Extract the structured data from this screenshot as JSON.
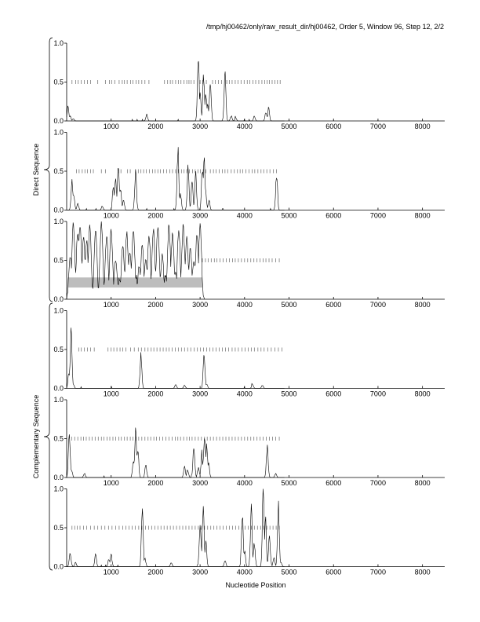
{
  "header": {
    "text": "/tmp/hj00462/only/raw_result_dir/hj00462, Order 5, Window 96, Step 12, 2/2"
  },
  "chart_data": {
    "type": "line",
    "xlabel": "Nucleotide Position",
    "group_labels": [
      "Direct Sequence",
      "Complementary Sequence"
    ],
    "xlim": [
      0,
      8500
    ],
    "ylim": [
      0,
      1
    ],
    "x_ticks": [
      1000,
      2000,
      3000,
      4000,
      5000,
      6000,
      7000,
      8000
    ],
    "y_ticks": [
      "0.0",
      "0.5",
      "1.0"
    ],
    "panels": [
      {
        "group": "Direct Sequence",
        "frame": 1,
        "peaks": [
          [
            30,
            0.18
          ],
          [
            80,
            0.06
          ],
          [
            150,
            0.03
          ],
          [
            1800,
            0.08
          ],
          [
            2960,
            0.83
          ],
          [
            3000,
            0.35
          ],
          [
            3080,
            0.58
          ],
          [
            3130,
            0.35
          ],
          [
            3170,
            0.22
          ],
          [
            3230,
            0.48
          ],
          [
            3560,
            0.65
          ],
          [
            3700,
            0.06
          ],
          [
            3800,
            0.04
          ],
          [
            4220,
            0.06
          ],
          [
            4480,
            0.12
          ],
          [
            4540,
            0.16
          ]
        ],
        "stop_codons": [
          120,
          200,
          260,
          330,
          400,
          470,
          540,
          700,
          870,
          960,
          1010,
          1080,
          1180,
          1250,
          1300,
          1360,
          1440,
          1490,
          1560,
          1620,
          1690,
          1760,
          1850,
          2200,
          2270,
          2330,
          2380,
          2450,
          2510,
          2570,
          2640,
          2700,
          2750,
          2800,
          2860,
          3000,
          3060,
          3140,
          3280,
          3340,
          3410,
          3480,
          3600,
          3660,
          3720,
          3790,
          3850,
          3920,
          3990,
          4060,
          4120,
          4190,
          4250,
          4320,
          4390,
          4450,
          4510,
          4560,
          4620,
          4680,
          4740,
          4800
        ]
      },
      {
        "group": "Direct Sequence",
        "frame": 2,
        "peaks": [
          [
            120,
            0.38
          ],
          [
            160,
            0.2
          ],
          [
            250,
            0.08
          ],
          [
            800,
            0.05
          ],
          [
            1050,
            0.3
          ],
          [
            1100,
            0.45
          ],
          [
            1160,
            0.62
          ],
          [
            1210,
            0.3
          ],
          [
            1280,
            0.12
          ],
          [
            1550,
            0.5
          ],
          [
            2500,
            0.77
          ],
          [
            2560,
            0.2
          ],
          [
            2730,
            0.55
          ],
          [
            2820,
            0.35
          ],
          [
            2900,
            0.45
          ],
          [
            3050,
            0.55
          ],
          [
            3090,
            0.7
          ],
          [
            3120,
            0.3
          ],
          [
            3200,
            0.12
          ],
          [
            4720,
            0.48
          ]
        ],
        "stop_codons": [
          220,
          280,
          350,
          410,
          470,
          540,
          600,
          780,
          870,
          1170,
          1220,
          1370,
          1430,
          1610,
          1670,
          1730,
          1790,
          1860,
          1930,
          1990,
          2050,
          2110,
          2180,
          2250,
          2320,
          2380,
          2450,
          2510,
          2580,
          2640,
          2700,
          2760,
          2830,
          2890,
          2950,
          3010,
          3070,
          3130,
          3230,
          3300,
          3360,
          3430,
          3500,
          3560,
          3620,
          3700,
          3770,
          3840,
          3900,
          3960,
          4030,
          4100,
          4170,
          4230,
          4300,
          4370,
          4430,
          4500,
          4570,
          4650,
          4720
        ]
      },
      {
        "group": "Direct Sequence",
        "frame": 3,
        "peaks": [
          [
            80,
            0.55
          ],
          [
            150,
            0.98
          ],
          [
            250,
            0.88
          ],
          [
            300,
            0.95
          ],
          [
            380,
            0.8
          ],
          [
            450,
            0.75
          ],
          [
            520,
            0.95
          ],
          [
            650,
            0.9
          ],
          [
            780,
            0.98
          ],
          [
            900,
            0.82
          ],
          [
            1000,
            0.9
          ],
          [
            1100,
            0.5
          ],
          [
            1180,
            0.25
          ],
          [
            1260,
            0.7
          ],
          [
            1350,
            0.85
          ],
          [
            1420,
            0.6
          ],
          [
            1500,
            0.9
          ],
          [
            1560,
            0.3
          ],
          [
            1630,
            0.4
          ],
          [
            1700,
            0.7
          ],
          [
            1780,
            0.5
          ],
          [
            1850,
            0.82
          ],
          [
            1950,
            0.9
          ],
          [
            2050,
            0.95
          ],
          [
            2150,
            0.55
          ],
          [
            2220,
            0.3
          ],
          [
            2300,
            0.95
          ],
          [
            2380,
            0.85
          ],
          [
            2450,
            0.35
          ],
          [
            2520,
            0.9
          ],
          [
            2620,
            0.95
          ],
          [
            2700,
            0.78
          ],
          [
            2780,
            0.65
          ],
          [
            2860,
            0.5
          ],
          [
            2930,
            0.85
          ],
          [
            3000,
            0.95
          ]
        ],
        "stop_codons": [
          3050,
          3120,
          3180,
          3250,
          3320,
          3380,
          3450,
          3520,
          3590,
          3660,
          3730,
          3790,
          3860,
          3930,
          4000,
          4070,
          4140,
          4210,
          4280,
          4350,
          4420,
          4480,
          4550,
          4620,
          4700,
          4780
        ],
        "orf_range": [
          0,
          3050
        ]
      },
      {
        "group": "Complementary Sequence",
        "frame": 1,
        "peaks": [
          [
            50,
            0.2
          ],
          [
            100,
            0.75
          ],
          [
            150,
            0.05
          ],
          [
            1670,
            0.42
          ],
          [
            2450,
            0.05
          ],
          [
            2650,
            0.04
          ],
          [
            3090,
            0.47
          ],
          [
            3150,
            0.05
          ],
          [
            4180,
            0.05
          ],
          [
            4400,
            0.04
          ]
        ],
        "stop_codons": [
          270,
          330,
          400,
          470,
          540,
          620,
          930,
          1000,
          1060,
          1130,
          1200,
          1260,
          1330,
          1440,
          1520,
          1610,
          1680,
          1760,
          1830,
          1900,
          1960,
          2030,
          2100,
          2170,
          2240,
          2300,
          2370,
          2440,
          2510,
          2580,
          2650,
          2720,
          2790,
          2870,
          2940,
          3010,
          3080,
          3150,
          3220,
          3290,
          3360,
          3430,
          3500,
          3570,
          3640,
          3720,
          3790,
          3860,
          3940,
          4010,
          4080,
          4150,
          4220,
          4300,
          4370,
          4440,
          4520,
          4600,
          4680,
          4760,
          4840
        ]
      },
      {
        "group": "Complementary Sequence",
        "frame": 2,
        "peaks": [
          [
            60,
            0.6
          ],
          [
            110,
            0.1
          ],
          [
            400,
            0.05
          ],
          [
            1500,
            0.2
          ],
          [
            1550,
            0.58
          ],
          [
            1600,
            0.35
          ],
          [
            1780,
            0.15
          ],
          [
            2650,
            0.15
          ],
          [
            2720,
            0.1
          ],
          [
            2860,
            0.4
          ],
          [
            2960,
            0.12
          ],
          [
            3040,
            0.3
          ],
          [
            3100,
            0.58
          ],
          [
            3150,
            0.4
          ],
          [
            3190,
            0.2
          ],
          [
            4510,
            0.42
          ],
          [
            4700,
            0.05
          ]
        ],
        "stop_codons": [
          110,
          180,
          250,
          320,
          380,
          440,
          510,
          570,
          640,
          710,
          780,
          840,
          910,
          970,
          1040,
          1100,
          1170,
          1230,
          1300,
          1360,
          1430,
          1490,
          1560,
          1620,
          1690,
          1760,
          1830,
          1890,
          1960,
          2020,
          2090,
          2160,
          2230,
          2300,
          2370,
          2440,
          2500,
          2560,
          2630,
          2700,
          2760,
          2820,
          2890,
          2960,
          3030,
          3100,
          3160,
          3230,
          3300,
          3370,
          3440,
          3510,
          3580,
          3650,
          3720,
          3790,
          3860,
          3930,
          4000,
          4070,
          4140,
          4210,
          4280,
          4350,
          4420,
          4490,
          4560,
          4630,
          4700,
          4780
        ]
      },
      {
        "group": "Complementary Sequence",
        "frame": 3,
        "peaks": [
          [
            80,
            0.18
          ],
          [
            200,
            0.05
          ],
          [
            650,
            0.15
          ],
          [
            950,
            0.1
          ],
          [
            1000,
            0.15
          ],
          [
            1700,
            0.72
          ],
          [
            1760,
            0.1
          ],
          [
            2350,
            0.05
          ],
          [
            3000,
            0.55
          ],
          [
            3070,
            0.8
          ],
          [
            3130,
            0.3
          ],
          [
            3560,
            0.08
          ],
          [
            3950,
            0.7
          ],
          [
            4000,
            0.2
          ],
          [
            4150,
            0.73
          ],
          [
            4220,
            0.3
          ],
          [
            4420,
            0.97
          ],
          [
            4470,
            0.6
          ],
          [
            4560,
            0.4
          ],
          [
            4660,
            0.12
          ],
          [
            4760,
            0.8
          ],
          [
            4820,
            0.05
          ]
        ],
        "stop_codons": [
          120,
          180,
          240,
          300,
          380,
          450,
          540,
          620,
          700,
          780,
          860,
          940,
          1020,
          1100,
          1180,
          1260,
          1330,
          1400,
          1470,
          1540,
          1620,
          1690,
          1770,
          1840,
          1910,
          1980,
          2050,
          2120,
          2190,
          2260,
          2330,
          2400,
          2470,
          2540,
          2610,
          2680,
          2750,
          2820,
          2890,
          2960,
          3030,
          3100,
          3170,
          3240,
          3310,
          3380,
          3450,
          3520,
          3590,
          3660,
          3730,
          3800,
          3870,
          3940,
          4010,
          4080,
          4150,
          4220,
          4290,
          4360,
          4430,
          4500,
          4570,
          4640,
          4710,
          4780
        ]
      }
    ]
  }
}
